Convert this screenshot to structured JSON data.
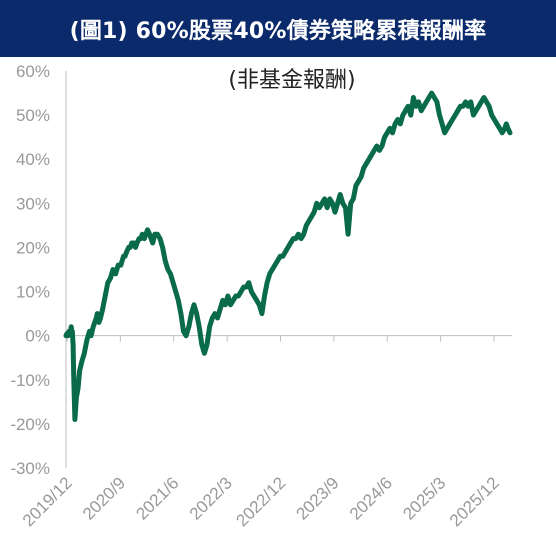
{
  "header": {
    "title": "(圖1) 60%股票40%債券策略累積報酬率"
  },
  "chart_data": {
    "type": "line",
    "title": "(圖1) 60%股票40%債券策略累積報酬率",
    "subtitle": "(非基金報酬)",
    "xlabel": "",
    "ylabel": "",
    "ylim": [
      -30,
      60
    ],
    "yticks": [
      "60%",
      "50%",
      "40%",
      "30%",
      "20%",
      "10%",
      "0%",
      "-10%",
      "-20%",
      "-30%"
    ],
    "xticks": [
      "2019/12",
      "2020/9",
      "2021/6",
      "2022/3",
      "2022/12",
      "2023/9",
      "2024/6",
      "2025/3",
      "2025/12"
    ],
    "grid": false,
    "line_color": "#0a6b4b",
    "series": [
      {
        "name": "",
        "x": [
          0,
          0.2,
          0.4,
          0.6,
          0.8,
          1.0,
          1.1,
          1.2,
          1.35,
          1.5,
          1.7,
          2.0,
          2.3,
          2.6,
          3.0,
          3.5,
          4.0,
          4.5,
          4.8,
          5.0,
          5.2,
          5.5,
          5.8,
          6.0,
          6.3,
          6.6,
          7.0,
          7.5,
          8.0,
          8.5,
          9.0,
          9.5,
          10.0,
          10.5,
          11.0,
          11.3,
          11.6,
          12.0,
          12.3,
          12.6,
          13.0,
          13.3,
          13.6,
          14.0,
          14.3,
          14.6,
          15.0,
          15.3,
          15.6,
          16.0,
          16.3,
          16.6,
          17.0,
          17.5,
          18.0,
          18.5,
          19.0,
          19.5,
          20.0,
          20.5,
          21.0,
          21.5,
          22.0,
          22.5,
          23.0,
          23.5,
          24.0,
          24.5,
          25.0,
          25.5,
          26.0,
          26.5,
          27.0,
          27.5,
          28.0,
          28.5,
          29.0,
          29.5,
          30.0,
          30.5,
          31.0,
          31.5,
          32.0,
          32.5,
          33.0,
          33.5,
          34.0,
          34.5,
          35.0,
          35.5,
          36.0,
          36.5,
          37.0,
          37.5,
          38.0,
          38.5,
          39.0,
          39.5,
          40.0,
          40.5,
          41.0,
          41.5,
          42.0,
          42.5,
          43.0,
          43.5,
          44.0,
          44.5,
          45.0,
          45.5,
          46.0,
          46.5,
          47.0,
          47.5,
          48.0,
          48.5,
          49.0,
          49.5,
          50.0,
          50.5,
          51.0,
          51.5,
          52.0,
          52.5,
          53.0,
          53.5,
          54.0,
          54.5,
          55.0,
          55.5,
          56.0,
          56.5,
          57.0,
          57.5,
          58.0,
          58.5,
          59.0,
          59.5,
          60.0,
          60.5,
          61.0,
          61.5,
          62.0,
          62.5,
          63.0,
          63.5,
          64.0,
          64.5,
          65.0,
          65.5,
          66.0,
          66.5,
          67.0,
          67.5,
          68.0,
          68.5,
          69.0,
          69.5,
          70.0,
          70.5,
          71.0,
          71.5,
          72.0,
          72.5,
          73.0,
          73.5,
          74.0,
          74.5,
          75.0,
          75.5,
          76.0,
          76.5,
          77.0,
          77.5,
          78.0,
          78.5,
          79.0,
          79.5,
          80.0,
          80.5,
          81.0,
          81.5,
          82.0,
          82.5,
          83.0,
          83.5,
          84.0,
          84.3,
          84.6,
          85.0
        ],
        "y": [
          0,
          0.5,
          0,
          1,
          0.5,
          2,
          1,
          1,
          -2,
          -10,
          -19,
          -14,
          -12,
          -8,
          -6,
          -4,
          -1,
          1,
          0,
          1,
          2,
          3,
          4,
          5,
          3,
          4,
          6,
          9,
          12,
          13,
          15,
          14,
          16,
          16,
          18,
          18,
          19,
          20,
          20,
          21,
          21,
          20,
          21,
          22,
          22,
          23,
          22,
          23,
          24,
          23,
          22,
          21,
          23,
          23,
          22,
          20,
          17,
          15,
          14,
          12,
          10,
          8,
          5,
          1,
          0,
          2,
          5,
          7,
          5,
          2,
          -2,
          -4,
          -2,
          2,
          4,
          5,
          4,
          6,
          8,
          7,
          9,
          7,
          8,
          9,
          9,
          10,
          11,
          11,
          12,
          10,
          9,
          8,
          7,
          5,
          9,
          12,
          14,
          15,
          16,
          17,
          18,
          18,
          19,
          20,
          21,
          22,
          22,
          23,
          22,
          23,
          25,
          26,
          27,
          28,
          30,
          29,
          30,
          31,
          29,
          31,
          30,
          28,
          30,
          32,
          30,
          29,
          23,
          30,
          31,
          34,
          35,
          36,
          38,
          39,
          40,
          41,
          42,
          43,
          42,
          43,
          45,
          46,
          47,
          46,
          48,
          49,
          48,
          50,
          51,
          52,
          50,
          54,
          52,
          53,
          51,
          52,
          53,
          54,
          55,
          54,
          53,
          50,
          48,
          46,
          47,
          48,
          49,
          50,
          51,
          52,
          52,
          53,
          52,
          53,
          50,
          51,
          52,
          53,
          54,
          53,
          52,
          50,
          49,
          48,
          47,
          46,
          47,
          48,
          47,
          46
        ]
      }
    ]
  }
}
